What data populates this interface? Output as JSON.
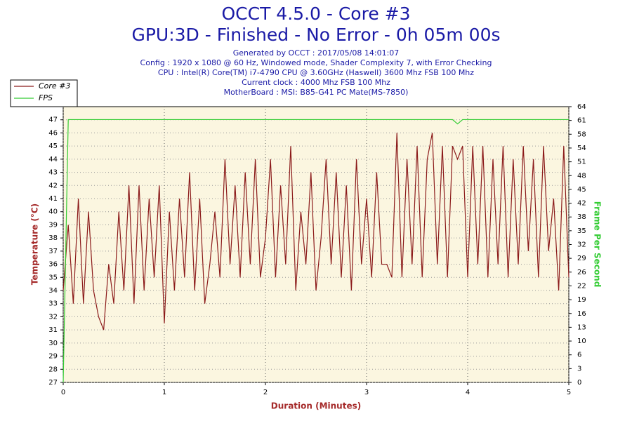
{
  "chart_data": {
    "type": "line",
    "title": [
      "OCCT 4.5.0 - Core #3",
      "GPU:3D - Finished - No Error - 0h 05m 00s"
    ],
    "subtitle": [
      "Generated by OCCT : 2017/05/08 14:01:07",
      "Config : 1920 x 1080 @ 60 Hz, Windowed mode, Shader Complexity 7, with Error Checking",
      "CPU : Intel(R) Core(TM) i7-4790 CPU @ 3.60GHz (Haswell) 3600 Mhz FSB 100 Mhz",
      "Current clock : 4000 Mhz FSB 100 Mhz",
      "MotherBoard : MSI: B85-G41 PC Mate(MS-7850)"
    ],
    "xlabel": "Duration (Minutes)",
    "ylabel": "Temperature (°C)",
    "y2label": "Frame Per Second",
    "xlim": [
      0,
      5
    ],
    "xticks": [
      0,
      1,
      2,
      3,
      4,
      5
    ],
    "ylim": [
      27,
      48
    ],
    "yticks": [
      27,
      28,
      29,
      30,
      31,
      32,
      33,
      34,
      35,
      36,
      37,
      38,
      39,
      40,
      41,
      42,
      43,
      44,
      45,
      46,
      47
    ],
    "y2lim": [
      0,
      64
    ],
    "y2ticks": [
      0,
      {
        "value": 3.2,
        "label": "3"
      },
      {
        "value": 6.4,
        "label": "6"
      },
      {
        "value": 9.6,
        "label": "10"
      },
      {
        "value": 12.8,
        "label": "13"
      },
      16,
      {
        "value": 19.2,
        "label": "19"
      },
      {
        "value": 22.4,
        "label": "22"
      },
      {
        "value": 25.6,
        "label": "26"
      },
      {
        "value": 28.8,
        "label": "29"
      },
      32,
      {
        "value": 35.2,
        "label": "35"
      },
      {
        "value": 38.4,
        "label": "38"
      },
      {
        "value": 41.6,
        "label": "42"
      },
      {
        "value": 44.8,
        "label": "45"
      },
      48,
      {
        "value": 51.2,
        "label": "51"
      },
      {
        "value": 54.4,
        "label": "54"
      },
      {
        "value": 57.6,
        "label": "58"
      },
      {
        "value": 60.8,
        "label": "61"
      },
      64
    ],
    "grid": true,
    "legend": "top-left",
    "x": [
      0,
      0.05,
      0.1,
      0.15,
      0.2,
      0.25,
      0.3,
      0.35,
      0.4,
      0.45,
      0.5,
      0.55,
      0.6,
      0.65,
      0.7,
      0.75,
      0.8,
      0.85,
      0.9,
      0.95,
      1,
      1.05,
      1.1,
      1.15,
      1.2,
      1.25,
      1.3,
      1.35,
      1.4,
      1.45,
      1.5,
      1.55,
      1.6,
      1.65,
      1.7,
      1.75,
      1.8,
      1.85,
      1.9,
      1.95,
      2,
      2.05,
      2.1,
      2.15,
      2.2,
      2.25,
      2.3,
      2.35,
      2.4,
      2.45,
      2.5,
      2.55,
      2.6,
      2.65,
      2.7,
      2.75,
      2.8,
      2.85,
      2.9,
      2.95,
      3,
      3.05,
      3.1,
      3.15,
      3.2,
      3.25,
      3.3,
      3.35,
      3.4,
      3.45,
      3.5,
      3.55,
      3.6,
      3.65,
      3.7,
      3.75,
      3.8,
      3.85,
      3.9,
      3.95,
      4,
      4.05,
      4.1,
      4.15,
      4.2,
      4.25,
      4.3,
      4.35,
      4.4,
      4.45,
      4.5,
      4.55,
      4.6,
      4.65,
      4.7,
      4.75,
      4.8,
      4.85,
      4.9,
      4.95,
      5
    ],
    "series": [
      {
        "name": "Core #3",
        "color": "#8b1a1a",
        "values": [
          34,
          39,
          33,
          41,
          33,
          40,
          34,
          32,
          31,
          36,
          33,
          40,
          34,
          42,
          33,
          42,
          34,
          41,
          35,
          42,
          31.5,
          40,
          34,
          41,
          35,
          43,
          34,
          41,
          33,
          36,
          40,
          35,
          44,
          36,
          42,
          35,
          43,
          36,
          44,
          35,
          38,
          44,
          35,
          42,
          36,
          45,
          34,
          40,
          36,
          43,
          34,
          38,
          44,
          36,
          43,
          35,
          42,
          34,
          44,
          36,
          41,
          35,
          43,
          36,
          36,
          35,
          46,
          35,
          44,
          36,
          45,
          35,
          44,
          46,
          36,
          45,
          35,
          45,
          44,
          45,
          35,
          45,
          36,
          45,
          35,
          44,
          36,
          45,
          35,
          44,
          36,
          45,
          37,
          44,
          35,
          45,
          37,
          41,
          34,
          45,
          35
        ]
      },
      {
        "name": "FPS",
        "color": "#33cc33",
        "axis": "y2",
        "values": [
          0,
          61,
          61,
          61,
          61,
          61,
          61,
          61,
          61,
          61,
          61,
          61,
          61,
          61,
          61,
          61,
          61,
          61,
          61,
          61,
          61,
          61,
          61,
          61,
          61,
          61,
          61,
          61,
          61,
          61,
          61,
          61,
          61,
          61,
          61,
          61,
          61,
          61,
          61,
          61,
          61,
          61,
          61,
          61,
          61,
          61,
          61,
          61,
          61,
          61,
          61,
          61,
          61,
          61,
          61,
          61,
          61,
          61,
          61,
          61,
          61,
          61,
          61,
          61,
          61,
          61,
          61,
          61,
          61,
          61,
          61,
          61,
          61,
          61,
          61,
          61,
          61,
          61,
          60,
          61,
          61,
          61,
          61,
          61,
          61,
          61,
          61,
          61,
          61,
          61,
          61,
          61,
          61,
          61,
          61,
          61,
          61,
          61,
          61,
          61,
          61
        ]
      }
    ]
  }
}
